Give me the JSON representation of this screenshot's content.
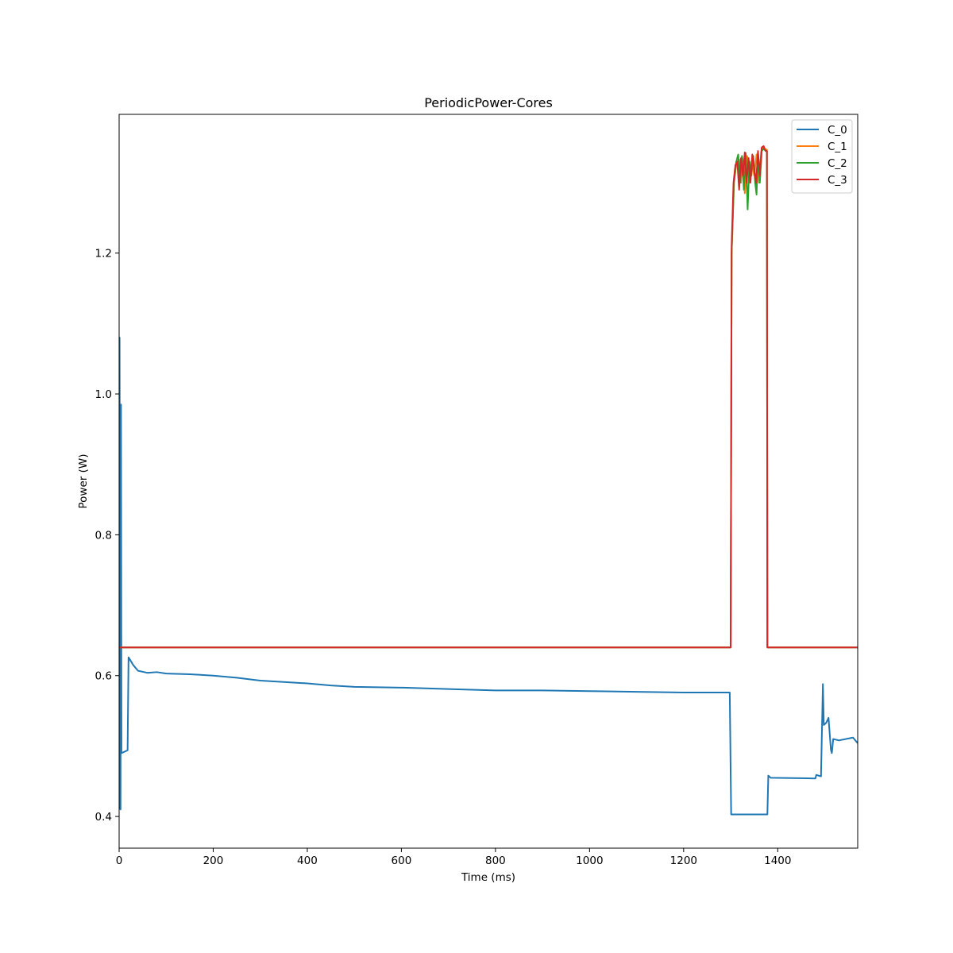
{
  "chart_data": {
    "type": "line",
    "title": "PeriodicPower-Cores",
    "xlabel": "Time (ms)",
    "ylabel": "Power (W)",
    "xlim": [
      0,
      1570
    ],
    "ylim": [
      0.355,
      1.397
    ],
    "xticks": [
      0,
      200,
      400,
      600,
      800,
      1000,
      1200,
      1400
    ],
    "yticks": [
      0.4,
      0.6,
      0.8,
      1.0,
      1.2
    ],
    "xtick_labels": [
      "0",
      "200",
      "400",
      "600",
      "800",
      "1000",
      "1200",
      "1400"
    ],
    "ytick_labels": [
      "0.4",
      "0.6",
      "0.8",
      "1.0",
      "1.2"
    ],
    "grid": false,
    "legend_position": "top-right",
    "series": [
      {
        "name": "C_0",
        "color": "#1f77b4",
        "points": [
          [
            0,
            0.41
          ],
          [
            1,
            1.08
          ],
          [
            2,
            0.64
          ],
          [
            3,
            0.41
          ],
          [
            4,
            0.985
          ],
          [
            5,
            0.49
          ],
          [
            18,
            0.494
          ],
          [
            20,
            0.626
          ],
          [
            30,
            0.615
          ],
          [
            40,
            0.607
          ],
          [
            60,
            0.604
          ],
          [
            80,
            0.605
          ],
          [
            100,
            0.603
          ],
          [
            150,
            0.602
          ],
          [
            200,
            0.6
          ],
          [
            250,
            0.597
          ],
          [
            300,
            0.593
          ],
          [
            350,
            0.591
          ],
          [
            400,
            0.589
          ],
          [
            450,
            0.586
          ],
          [
            500,
            0.584
          ],
          [
            600,
            0.583
          ],
          [
            700,
            0.581
          ],
          [
            800,
            0.579
          ],
          [
            900,
            0.579
          ],
          [
            1000,
            0.578
          ],
          [
            1100,
            0.577
          ],
          [
            1200,
            0.576
          ],
          [
            1298,
            0.576
          ],
          [
            1301,
            0.403
          ],
          [
            1378,
            0.403
          ],
          [
            1380,
            0.458
          ],
          [
            1385,
            0.455
          ],
          [
            1480,
            0.454
          ],
          [
            1482,
            0.459
          ],
          [
            1492,
            0.457
          ],
          [
            1496,
            0.588
          ],
          [
            1498,
            0.53
          ],
          [
            1503,
            0.533
          ],
          [
            1508,
            0.54
          ],
          [
            1513,
            0.495
          ],
          [
            1515,
            0.49
          ],
          [
            1518,
            0.51
          ],
          [
            1530,
            0.508
          ],
          [
            1560,
            0.512
          ],
          [
            1570,
            0.504
          ]
        ]
      },
      {
        "name": "C_1",
        "color": "#ff7f0e",
        "points": [
          [
            0,
            0.64
          ],
          [
            1300,
            0.64
          ],
          [
            1302,
            1.2
          ],
          [
            1307,
            1.3
          ],
          [
            1312,
            1.327
          ],
          [
            1318,
            1.333
          ],
          [
            1322,
            1.3
          ],
          [
            1325,
            1.335
          ],
          [
            1330,
            1.285
          ],
          [
            1335,
            1.338
          ],
          [
            1340,
            1.3
          ],
          [
            1345,
            1.332
          ],
          [
            1350,
            1.31
          ],
          [
            1355,
            1.34
          ],
          [
            1360,
            1.3
          ],
          [
            1365,
            1.345
          ],
          [
            1370,
            1.35
          ],
          [
            1375,
            1.347
          ],
          [
            1377,
            1.347
          ],
          [
            1378,
            0.64
          ],
          [
            1570,
            0.64
          ]
        ]
      },
      {
        "name": "C_2",
        "color": "#2ca02c",
        "points": [
          [
            0,
            0.64
          ],
          [
            1300,
            0.64
          ],
          [
            1302,
            1.2
          ],
          [
            1307,
            1.3
          ],
          [
            1312,
            1.33
          ],
          [
            1316,
            1.34
          ],
          [
            1320,
            1.3
          ],
          [
            1324,
            1.338
          ],
          [
            1328,
            1.29
          ],
          [
            1332,
            1.342
          ],
          [
            1336,
            1.262
          ],
          [
            1340,
            1.33
          ],
          [
            1344,
            1.31
          ],
          [
            1348,
            1.338
          ],
          [
            1352,
            1.3
          ],
          [
            1355,
            1.283
          ],
          [
            1358,
            1.34
          ],
          [
            1362,
            1.3
          ],
          [
            1366,
            1.345
          ],
          [
            1370,
            1.348
          ],
          [
            1375,
            1.345
          ],
          [
            1377,
            1.345
          ],
          [
            1378,
            0.64
          ],
          [
            1570,
            0.64
          ]
        ]
      },
      {
        "name": "C_3",
        "color": "#d62728",
        "points": [
          [
            0,
            0.64
          ],
          [
            1300,
            0.64
          ],
          [
            1302,
            1.21
          ],
          [
            1306,
            1.3
          ],
          [
            1310,
            1.325
          ],
          [
            1314,
            1.33
          ],
          [
            1318,
            1.29
          ],
          [
            1322,
            1.335
          ],
          [
            1326,
            1.31
          ],
          [
            1330,
            1.343
          ],
          [
            1334,
            1.3
          ],
          [
            1338,
            1.335
          ],
          [
            1342,
            1.3
          ],
          [
            1346,
            1.34
          ],
          [
            1350,
            1.32
          ],
          [
            1354,
            1.3
          ],
          [
            1358,
            1.345
          ],
          [
            1362,
            1.31
          ],
          [
            1366,
            1.35
          ],
          [
            1370,
            1.352
          ],
          [
            1374,
            1.345
          ],
          [
            1377,
            1.345
          ],
          [
            1378,
            0.64
          ],
          [
            1570,
            0.64
          ]
        ]
      }
    ]
  }
}
